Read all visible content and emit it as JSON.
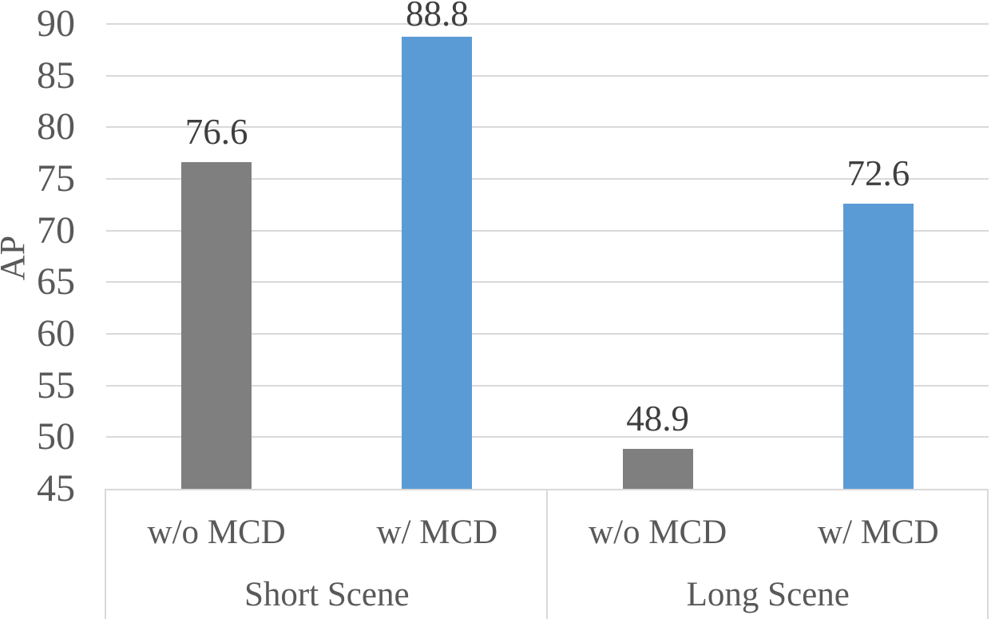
{
  "chart_data": {
    "type": "bar",
    "title": "",
    "ylabel": "AP",
    "xlabel": "",
    "ylim": [
      45,
      90
    ],
    "ytick_interval": 5,
    "yticks": [
      45,
      50,
      55,
      60,
      65,
      70,
      75,
      80,
      85,
      90
    ],
    "grid": true,
    "legend": "none",
    "categories": [
      "Short Scene",
      "Long Scene"
    ],
    "subcategories": [
      "w/o MCD",
      "w/ MCD"
    ],
    "series": [
      {
        "name": "w/o MCD",
        "color": "#7f7f7f",
        "values": [
          76.6,
          48.9
        ]
      },
      {
        "name": "w/ MCD",
        "color": "#5b9bd5",
        "values": [
          88.8,
          72.6
        ]
      }
    ],
    "data_labels": [
      "76.6",
      "88.8",
      "48.9",
      "72.6"
    ]
  },
  "colors": {
    "bar_gray": "#7f7f7f",
    "bar_blue": "#5b9bd5",
    "gridline": "#d9d9d9",
    "axis_box_border": "#d9d9d9",
    "axis_text": "#595959",
    "data_label_text": "#3f3f3f",
    "background": "#ffffff"
  }
}
